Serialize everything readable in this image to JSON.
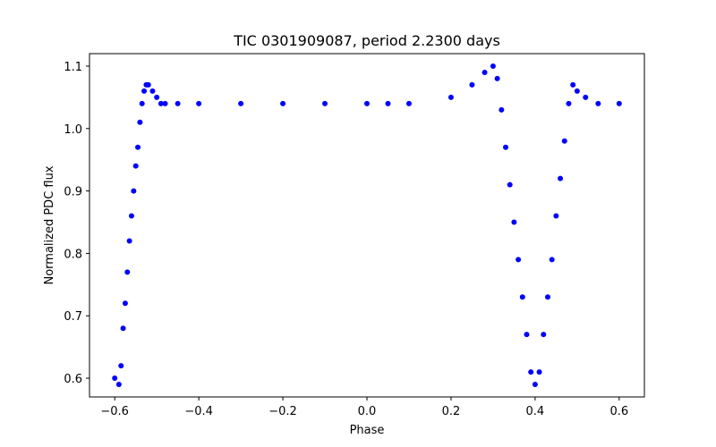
{
  "chart_data": {
    "type": "scatter",
    "title": "TIC 0301909087, period 2.2300 days",
    "xlabel": "Phase",
    "ylabel": "Normalized PDC flux",
    "xlim": [
      -0.66,
      0.66
    ],
    "ylim": [
      0.57,
      1.12
    ],
    "xticks": [
      -0.6,
      -0.4,
      -0.2,
      0.0,
      0.2,
      0.4,
      0.6
    ],
    "xtick_labels": [
      "−0.6",
      "−0.4",
      "−0.2",
      "0.0",
      "0.2",
      "0.4",
      "0.6"
    ],
    "yticks": [
      0.6,
      0.7,
      0.8,
      0.9,
      1.0,
      1.1
    ],
    "ytick_labels": [
      "0.6",
      "0.7",
      "0.8",
      "0.9",
      "1.0",
      "1.1"
    ],
    "grid": false,
    "marker_color": "#0000ff",
    "series": [
      {
        "x": [
          -0.6,
          -0.59,
          -0.585,
          -0.58,
          -0.575,
          -0.57,
          -0.565,
          -0.56,
          -0.555,
          -0.55,
          -0.545,
          -0.54,
          -0.535,
          -0.53,
          -0.525,
          -0.52,
          -0.51,
          -0.5,
          -0.49,
          -0.48,
          -0.45,
          -0.4,
          -0.3,
          -0.2,
          -0.1,
          0.0,
          0.05,
          0.1,
          0.2,
          0.25,
          0.28,
          0.3,
          0.31,
          0.32,
          0.33,
          0.34,
          0.35,
          0.36,
          0.37,
          0.38,
          0.39,
          0.4,
          0.41,
          0.42,
          0.43,
          0.44,
          0.45,
          0.46,
          0.47,
          0.48,
          0.49,
          0.5,
          0.52,
          0.55,
          0.6
        ],
        "y": [
          0.6,
          0.59,
          0.62,
          0.68,
          0.72,
          0.77,
          0.82,
          0.86,
          0.9,
          0.94,
          0.97,
          1.01,
          1.04,
          1.06,
          1.07,
          1.07,
          1.06,
          1.05,
          1.04,
          1.04,
          1.04,
          1.04,
          1.04,
          1.04,
          1.04,
          1.04,
          1.04,
          1.04,
          1.05,
          1.07,
          1.09,
          1.1,
          1.08,
          1.03,
          0.97,
          0.91,
          0.85,
          0.79,
          0.73,
          0.67,
          0.61,
          0.59,
          0.61,
          0.67,
          0.73,
          0.79,
          0.86,
          0.92,
          0.98,
          1.04,
          1.07,
          1.06,
          1.05,
          1.04,
          1.04
        ]
      }
    ]
  }
}
